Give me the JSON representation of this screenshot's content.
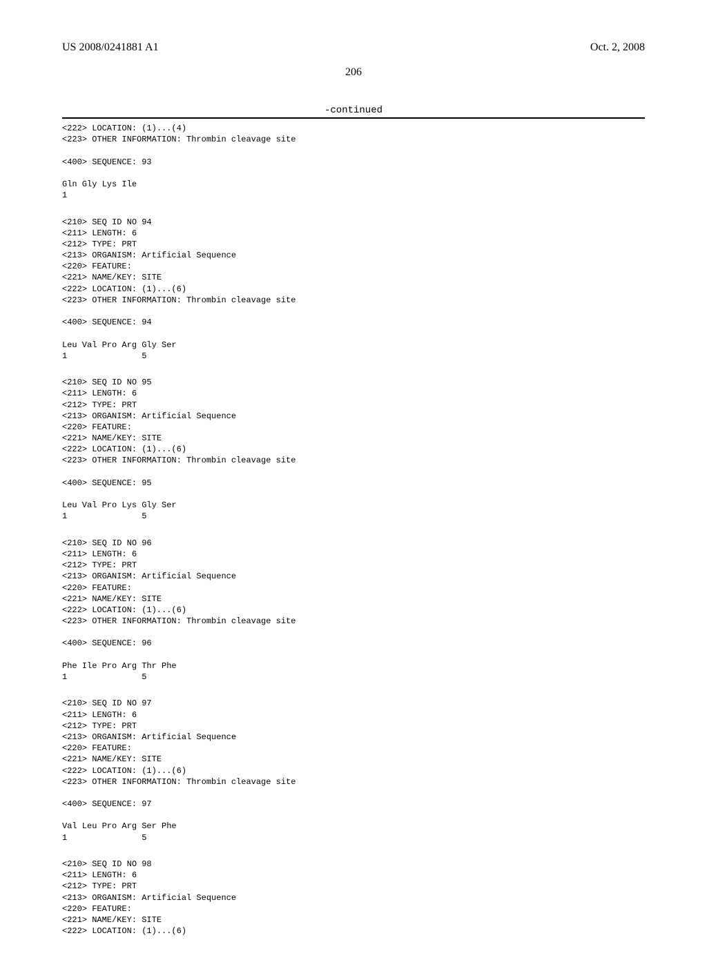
{
  "header": {
    "publication_number": "US 2008/0241881 A1",
    "date": "Oct. 2, 2008"
  },
  "page_number": "206",
  "continued_label": "-continued",
  "sequences": {
    "pre": "<222> LOCATION: (1)...(4)\n<223> OTHER INFORMATION: Thrombin cleavage site\n\n<400> SEQUENCE: 93\n\nGln Gly Lys Ile\n1\n\n",
    "s94": "<210> SEQ ID NO 94\n<211> LENGTH: 6\n<212> TYPE: PRT\n<213> ORGANISM: Artificial Sequence\n<220> FEATURE:\n<221> NAME/KEY: SITE\n<222> LOCATION: (1)...(6)\n<223> OTHER INFORMATION: Thrombin cleavage site\n\n<400> SEQUENCE: 94\n\nLeu Val Pro Arg Gly Ser\n1               5\n\n",
    "s95": "<210> SEQ ID NO 95\n<211> LENGTH: 6\n<212> TYPE: PRT\n<213> ORGANISM: Artificial Sequence\n<220> FEATURE:\n<221> NAME/KEY: SITE\n<222> LOCATION: (1)...(6)\n<223> OTHER INFORMATION: Thrombin cleavage site\n\n<400> SEQUENCE: 95\n\nLeu Val Pro Lys Gly Ser\n1               5\n\n",
    "s96": "<210> SEQ ID NO 96\n<211> LENGTH: 6\n<212> TYPE: PRT\n<213> ORGANISM: Artificial Sequence\n<220> FEATURE:\n<221> NAME/KEY: SITE\n<222> LOCATION: (1)...(6)\n<223> OTHER INFORMATION: Thrombin cleavage site\n\n<400> SEQUENCE: 96\n\nPhe Ile Pro Arg Thr Phe\n1               5\n\n",
    "s97": "<210> SEQ ID NO 97\n<211> LENGTH: 6\n<212> TYPE: PRT\n<213> ORGANISM: Artificial Sequence\n<220> FEATURE:\n<221> NAME/KEY: SITE\n<222> LOCATION: (1)...(6)\n<223> OTHER INFORMATION: Thrombin cleavage site\n\n<400> SEQUENCE: 97\n\nVal Leu Pro Arg Ser Phe\n1               5\n\n",
    "s98": "<210> SEQ ID NO 98\n<211> LENGTH: 6\n<212> TYPE: PRT\n<213> ORGANISM: Artificial Sequence\n<220> FEATURE:\n<221> NAME/KEY: SITE\n<222> LOCATION: (1)...(6)"
  }
}
